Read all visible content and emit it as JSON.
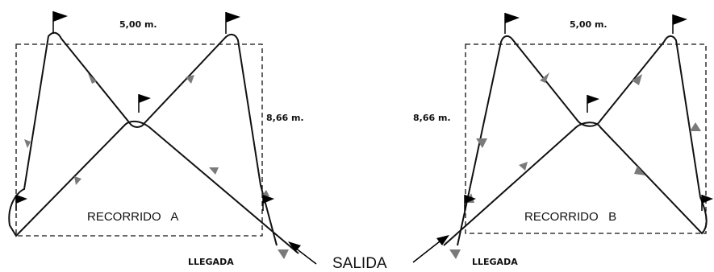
{
  "course_a": {
    "title": "RECORRIDO   A",
    "width_label": "5,00 m.",
    "length_label": "8,66 m.",
    "finish_label": "LLEGADA"
  },
  "course_b": {
    "title": "RECORRIDO   B",
    "width_label": "5,00 m.",
    "length_label": "8,66 m.",
    "finish_label": "LLEGADA"
  },
  "start_label": "SALIDA",
  "colors": {
    "line": "#111111",
    "arrow": "#7a7a7a",
    "flag": "#000000",
    "background": "#ffffff"
  }
}
